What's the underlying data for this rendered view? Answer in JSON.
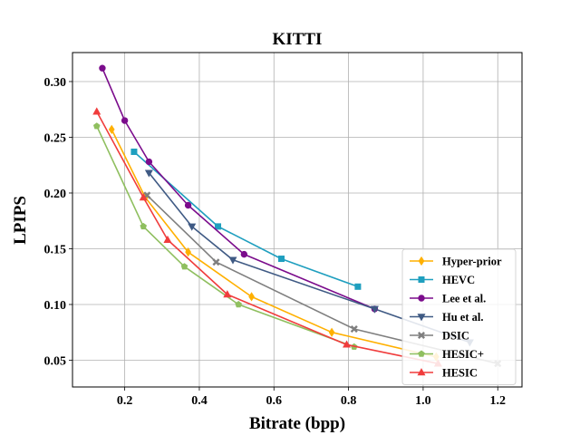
{
  "chart_data": {
    "type": "line",
    "title": "KITTI",
    "xlabel": "Bitrate (bpp)",
    "ylabel": "LPIPS",
    "xlim": [
      0.06,
      1.265
    ],
    "ylim": [
      0.026,
      0.326
    ],
    "xticks": [
      {
        "value": 0.2,
        "label": "0.2"
      },
      {
        "value": 0.4,
        "label": "0.4"
      },
      {
        "value": 0.6,
        "label": "0.6"
      },
      {
        "value": 0.8,
        "label": "0.8"
      },
      {
        "value": 1.0,
        "label": "1.0"
      },
      {
        "value": 1.2,
        "label": "1.2"
      }
    ],
    "yticks": [
      {
        "value": 0.05,
        "label": "0.05"
      },
      {
        "value": 0.1,
        "label": "0.10"
      },
      {
        "value": 0.15,
        "label": "0.15"
      },
      {
        "value": 0.2,
        "label": "0.20"
      },
      {
        "value": 0.25,
        "label": "0.25"
      },
      {
        "value": 0.3,
        "label": "0.30"
      }
    ],
    "grid": true,
    "legend_position": "lower-right",
    "series": [
      {
        "name": "Hyper-prior",
        "color": "#FFB000",
        "marker": "diamond",
        "x": [
          0.165,
          0.255,
          0.37,
          0.54,
          0.755,
          1.035
        ],
        "y": [
          0.257,
          0.196,
          0.147,
          0.107,
          0.075,
          0.053
        ]
      },
      {
        "name": "HEVC",
        "color": "#1F9FBF",
        "marker": "square",
        "x": [
          0.225,
          0.45,
          0.62,
          0.825
        ],
        "y": [
          0.237,
          0.17,
          0.141,
          0.116
        ]
      },
      {
        "name": "Lee et al.",
        "color": "#7B0C8C",
        "marker": "circle",
        "x": [
          0.14,
          0.2,
          0.265,
          0.37,
          0.52,
          0.87
        ],
        "y": [
          0.312,
          0.265,
          0.228,
          0.189,
          0.145,
          0.096
        ]
      },
      {
        "name": "Hu et al.",
        "color": "#3F5A84",
        "marker": "triangle-down",
        "x": [
          0.265,
          0.38,
          0.49,
          0.87,
          1.125
        ],
        "y": [
          0.218,
          0.17,
          0.14,
          0.096,
          0.066
        ]
      },
      {
        "name": "DSIC",
        "color": "#7F7F7F",
        "marker": "x",
        "x": [
          0.26,
          0.445,
          0.815,
          1.2
        ],
        "y": [
          0.198,
          0.138,
          0.078,
          0.047
        ]
      },
      {
        "name": "HESIC+",
        "color": "#8FBF5F",
        "marker": "pentagon",
        "x": [
          0.125,
          0.25,
          0.36,
          0.505,
          0.815
        ],
        "y": [
          0.26,
          0.17,
          0.134,
          0.1,
          0.062
        ]
      },
      {
        "name": "HESIC",
        "color": "#F03C3C",
        "marker": "triangle-up",
        "x": [
          0.125,
          0.25,
          0.315,
          0.475,
          0.795,
          1.04
        ],
        "y": [
          0.273,
          0.196,
          0.158,
          0.109,
          0.064,
          0.047
        ]
      }
    ]
  }
}
